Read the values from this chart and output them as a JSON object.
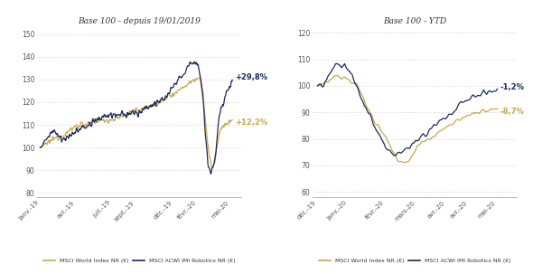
{
  "title_left": "Base 100 - depuis 19/01/2019",
  "title_right": "Base 100 - YTD",
  "color_world": "#C8A84B",
  "color_robotics": "#1B2A5C",
  "label_world": "MSCI World Index NR (€)",
  "label_robotics": "MSCI ACWI IMI Robotics NR (€)",
  "annotation_left_robotics": "+29,8%",
  "annotation_left_world": "+12,2%",
  "annotation_right_robotics": "-1,2%",
  "annotation_right_world": "-8,7%",
  "left_yticks": [
    80,
    90,
    100,
    110,
    120,
    130,
    140,
    150
  ],
  "right_yticks": [
    60,
    70,
    80,
    90,
    100,
    110,
    120
  ],
  "left_xtick_labels": [
    "janv.-19",
    "avr.-19",
    "juil.-19",
    "sept.-19",
    "déc.-19",
    "févr.-20",
    "mai-20"
  ],
  "right_xtick_labels": [
    "déc.-19",
    "janv.-20",
    "févr.-20",
    "mars-20",
    "avr.-20",
    "avr.-20",
    "mai-20"
  ],
  "background_color": "#ffffff",
  "grid_color": "#cccccc"
}
